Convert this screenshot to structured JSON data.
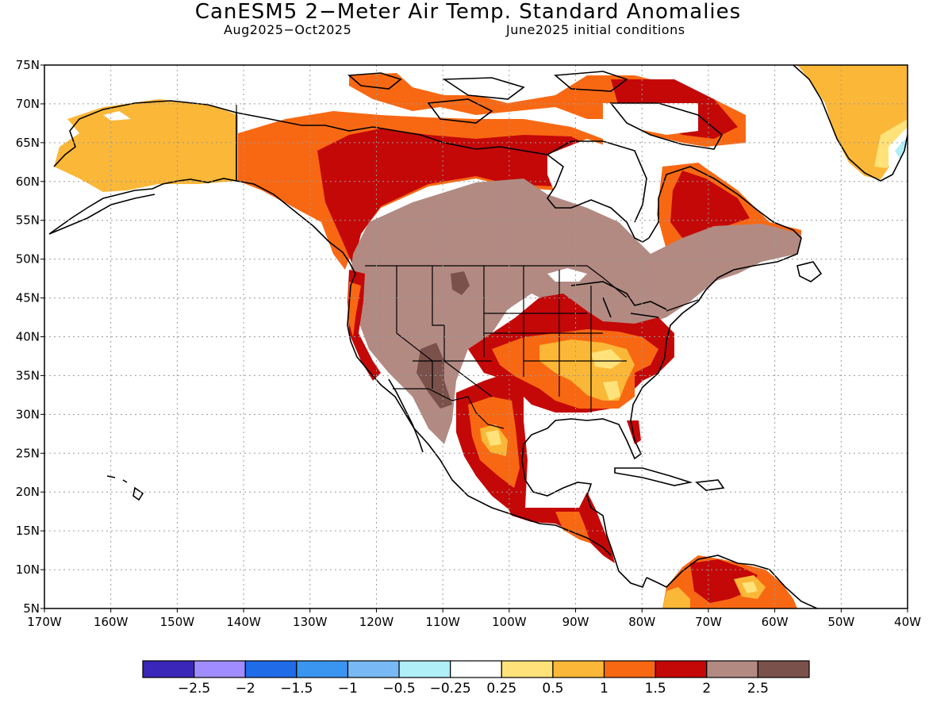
{
  "header": {
    "title": "CanESM5 2−Meter Air Temp. Standard Anomalies",
    "period": "Aug2025−Oct2025",
    "init": "June2025 initial conditions"
  },
  "map": {
    "projection": "lat-lon",
    "lon_range": [
      -170,
      -40
    ],
    "lat_range": [
      5,
      75
    ],
    "lat_labels": [
      "5N",
      "10N",
      "15N",
      "20N",
      "25N",
      "30N",
      "35N",
      "40N",
      "45N",
      "50N",
      "55N",
      "60N",
      "65N",
      "70N",
      "75N"
    ],
    "lon_labels": [
      "170W",
      "160W",
      "150W",
      "140W",
      "130W",
      "120W",
      "110W",
      "100W",
      "90W",
      "80W",
      "70W",
      "60W",
      "50W",
      "40W"
    ],
    "grid": "dotted"
  },
  "colorbar": {
    "labels": [
      "−2.5",
      "−2",
      "−1.5",
      "−1",
      "−0.5",
      "−0.25",
      "0.25",
      "0.5",
      "1",
      "1.5",
      "2",
      "2.5"
    ],
    "colors": [
      "#3a26b8",
      "#a08cff",
      "#1f6be8",
      "#3a95f0",
      "#78b9f5",
      "#b0eef8",
      "#ffffff",
      "#ffe27a",
      "#fbb737",
      "#f86813",
      "#c40808",
      "#b28a82",
      "#7b514b"
    ]
  },
  "palette": {
    "light_yellow": "#ffe27a",
    "yellow_orange": "#fbb737",
    "orange": "#f86813",
    "red": "#c40808",
    "mauve": "#b28a82",
    "brown": "#7b514b",
    "white": "#ffffff",
    "light_cyan": "#b0eef8"
  }
}
